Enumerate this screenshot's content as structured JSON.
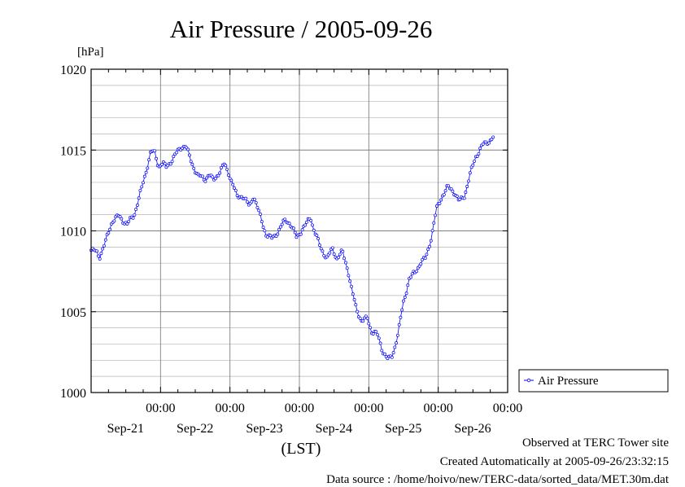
{
  "chart_data": {
    "type": "line",
    "title": "Air Pressure / 2005-09-26",
    "ylabel": "[hPa]",
    "xlabel": "(LST)",
    "ylim": [
      1000,
      1020
    ],
    "yticks": [
      1000,
      1005,
      1010,
      1015,
      1020
    ],
    "xlim_days": [
      0,
      6
    ],
    "xticks": [
      {
        "day": 1,
        "time": "00:00",
        "date": "Sep-21"
      },
      {
        "day": 2,
        "time": "00:00",
        "date": "Sep-22"
      },
      {
        "day": 3,
        "time": "00:00",
        "date": "Sep-23"
      },
      {
        "day": 4,
        "time": "00:00",
        "date": "Sep-24"
      },
      {
        "day": 5,
        "time": "00:00",
        "date": "Sep-25"
      },
      {
        "day": 6,
        "time": "00:00",
        "date": "Sep-26"
      }
    ],
    "grid": true,
    "legend": "right",
    "series": [
      {
        "name": "Air Pressure",
        "color": "#0000ff",
        "interval_hours": 0.5,
        "anchors": [
          [
            0.0,
            1008.8
          ],
          [
            0.08,
            1008.7
          ],
          [
            0.12,
            1008.4
          ],
          [
            0.2,
            1009.2
          ],
          [
            0.3,
            1010.6
          ],
          [
            0.4,
            1010.9
          ],
          [
            0.52,
            1010.4
          ],
          [
            0.62,
            1011.0
          ],
          [
            0.74,
            1012.8
          ],
          [
            0.86,
            1014.9
          ],
          [
            0.92,
            1014.8
          ],
          [
            0.97,
            1014.0
          ],
          [
            1.03,
            1014.2
          ],
          [
            1.08,
            1013.9
          ],
          [
            1.18,
            1014.5
          ],
          [
            1.3,
            1015.2
          ],
          [
            1.36,
            1015.3
          ],
          [
            1.44,
            1014.3
          ],
          [
            1.54,
            1013.4
          ],
          [
            1.64,
            1013.2
          ],
          [
            1.7,
            1013.5
          ],
          [
            1.76,
            1013.1
          ],
          [
            1.84,
            1013.6
          ],
          [
            1.92,
            1014.1
          ],
          [
            1.98,
            1013.6
          ],
          [
            2.04,
            1012.9
          ],
          [
            2.1,
            1012.1
          ],
          [
            2.18,
            1012.2
          ],
          [
            2.28,
            1011.5
          ],
          [
            2.34,
            1012.2
          ],
          [
            2.42,
            1011.1
          ],
          [
            2.52,
            1009.8
          ],
          [
            2.6,
            1009.5
          ],
          [
            2.7,
            1010.0
          ],
          [
            2.8,
            1010.7
          ],
          [
            2.86,
            1010.5
          ],
          [
            2.96,
            1009.6
          ],
          [
            3.04,
            1010.1
          ],
          [
            3.1,
            1010.4
          ],
          [
            3.16,
            1010.9
          ],
          [
            3.2,
            1010.2
          ],
          [
            3.3,
            1009.0
          ],
          [
            3.4,
            1008.3
          ],
          [
            3.48,
            1008.9
          ],
          [
            3.54,
            1008.3
          ],
          [
            3.62,
            1008.7
          ],
          [
            3.7,
            1007.6
          ],
          [
            3.76,
            1006.2
          ],
          [
            3.82,
            1005.2
          ],
          [
            3.9,
            1004.4
          ],
          [
            3.98,
            1004.6
          ],
          [
            4.04,
            1003.8
          ],
          [
            4.12,
            1003.6
          ],
          [
            4.2,
            1002.6
          ],
          [
            4.28,
            1002.0
          ],
          [
            4.34,
            1002.3
          ],
          [
            4.42,
            1003.6
          ],
          [
            4.5,
            1005.6
          ],
          [
            4.58,
            1007.0
          ],
          [
            4.66,
            1007.4
          ],
          [
            4.74,
            1008.0
          ],
          [
            4.82,
            1008.3
          ],
          [
            4.9,
            1009.6
          ],
          [
            4.98,
            1011.4
          ],
          [
            5.06,
            1012.2
          ],
          [
            5.14,
            1012.7
          ],
          [
            5.22,
            1012.5
          ],
          [
            5.3,
            1011.8
          ],
          [
            5.38,
            1012.2
          ],
          [
            5.46,
            1013.5
          ],
          [
            5.54,
            1014.6
          ],
          [
            5.64,
            1015.3
          ],
          [
            5.74,
            1015.6
          ],
          [
            5.8,
            1015.8
          ]
        ]
      }
    ]
  },
  "notes": {
    "observed": "Observed at TERC Tower site",
    "created": "Created Automatically at 2005-09-26/23:32:15",
    "source": "Data source : /home/hoivo/new/TERC-data/sorted_data/MET.30m.dat"
  }
}
